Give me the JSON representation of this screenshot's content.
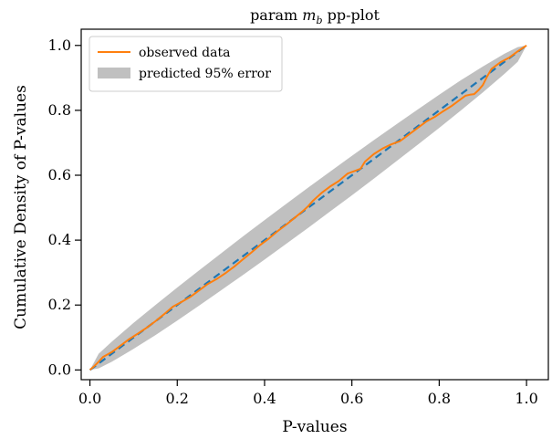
{
  "chart_data": {
    "type": "line",
    "title": "param m_b pp-plot",
    "title_parts": {
      "prefix": "param ",
      "symbol": "m",
      "subscript": "b",
      "suffix": " pp-plot"
    },
    "xlabel": "P-values",
    "ylabel": "Cumulative Density of P-values",
    "xlim": [
      -0.02,
      1.05
    ],
    "ylim": [
      -0.03,
      1.05
    ],
    "xticks": [
      "0.0",
      "0.2",
      "0.4",
      "0.6",
      "0.8",
      "1.0"
    ],
    "yticks": [
      "0.0",
      "0.2",
      "0.4",
      "0.6",
      "0.8",
      "1.0"
    ],
    "grid": false,
    "legend_position": "top-left",
    "band": {
      "name": "predicted 95% error",
      "color": "#c0c0c0",
      "x": [
        0.0,
        0.02,
        0.05,
        0.1,
        0.15,
        0.2,
        0.25,
        0.3,
        0.35,
        0.4,
        0.45,
        0.5,
        0.55,
        0.6,
        0.65,
        0.7,
        0.75,
        0.8,
        0.85,
        0.9,
        0.95,
        0.98,
        1.0
      ],
      "lower": [
        0.0,
        0.005,
        0.025,
        0.065,
        0.107,
        0.152,
        0.198,
        0.245,
        0.292,
        0.34,
        0.389,
        0.438,
        0.488,
        0.538,
        0.589,
        0.641,
        0.693,
        0.746,
        0.8,
        0.855,
        0.913,
        0.95,
        1.0
      ],
      "upper": [
        0.0,
        0.05,
        0.087,
        0.145,
        0.2,
        0.254,
        0.307,
        0.359,
        0.411,
        0.462,
        0.512,
        0.562,
        0.611,
        0.66,
        0.708,
        0.755,
        0.802,
        0.848,
        0.893,
        0.935,
        0.975,
        0.995,
        1.0
      ]
    },
    "reference": {
      "color": "#1f77b4",
      "x": [
        0.0,
        1.0
      ],
      "y": [
        0.0,
        1.0
      ]
    },
    "series": [
      {
        "name": "observed data",
        "color": "#ff7f0e",
        "x": [
          0.0,
          0.01,
          0.02,
          0.03,
          0.05,
          0.07,
          0.09,
          0.11,
          0.13,
          0.15,
          0.17,
          0.19,
          0.21,
          0.23,
          0.25,
          0.27,
          0.29,
          0.31,
          0.33,
          0.35,
          0.37,
          0.39,
          0.41,
          0.43,
          0.45,
          0.47,
          0.49,
          0.5,
          0.51,
          0.53,
          0.55,
          0.57,
          0.59,
          0.61,
          0.62,
          0.63,
          0.65,
          0.67,
          0.69,
          0.71,
          0.73,
          0.75,
          0.77,
          0.79,
          0.81,
          0.83,
          0.85,
          0.86,
          0.87,
          0.88,
          0.89,
          0.9,
          0.91,
          0.92,
          0.94,
          0.96,
          0.98,
          1.0
        ],
        "y": [
          0.0,
          0.012,
          0.025,
          0.04,
          0.055,
          0.075,
          0.095,
          0.112,
          0.13,
          0.15,
          0.172,
          0.195,
          0.21,
          0.225,
          0.245,
          0.265,
          0.28,
          0.298,
          0.318,
          0.34,
          0.362,
          0.385,
          0.405,
          0.428,
          0.448,
          0.47,
          0.492,
          0.505,
          0.52,
          0.545,
          0.565,
          0.582,
          0.605,
          0.615,
          0.62,
          0.642,
          0.665,
          0.682,
          0.695,
          0.705,
          0.725,
          0.745,
          0.765,
          0.78,
          0.798,
          0.815,
          0.835,
          0.845,
          0.848,
          0.85,
          0.862,
          0.878,
          0.905,
          0.928,
          0.948,
          0.962,
          0.982,
          1.0
        ]
      }
    ]
  }
}
